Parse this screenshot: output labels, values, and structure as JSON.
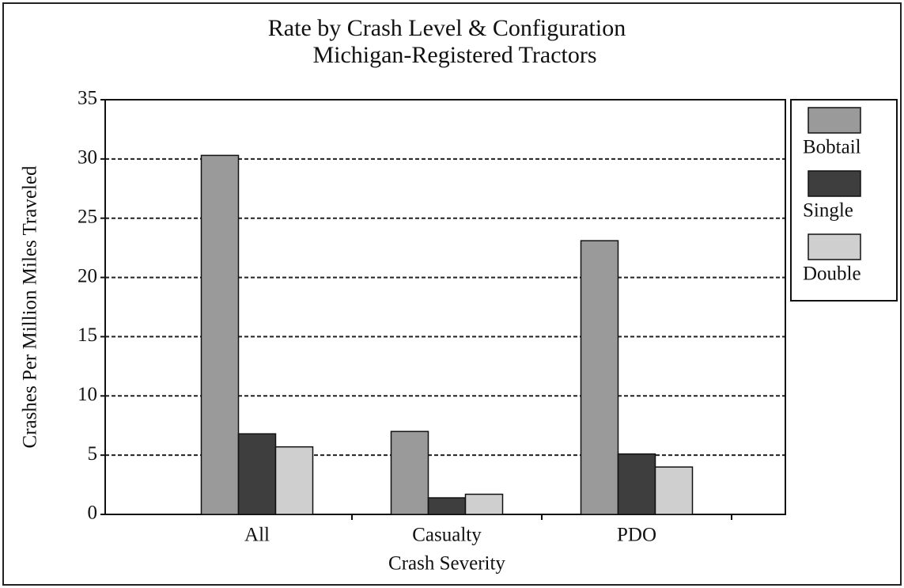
{
  "chart_data": {
    "type": "bar",
    "title": "Rate by Crash Level & Configuration",
    "subtitle": "Michigan-Registered Tractors",
    "x_label": "Crash Severity",
    "y_label": "Crashes Per Million Miles Traveled",
    "categories": [
      "All",
      "Casualty",
      "PDO"
    ],
    "series": [
      {
        "name": "Bobtail",
        "color": "#9a9a9a",
        "values": [
          30.3,
          7.0,
          23.1
        ]
      },
      {
        "name": "Single",
        "color": "#3e3e3e",
        "values": [
          6.8,
          1.4,
          5.1
        ]
      },
      {
        "name": "Double",
        "color": "#cfcfcf",
        "values": [
          5.7,
          1.7,
          4.0
        ]
      }
    ],
    "ylim": [
      0,
      35
    ],
    "yticks": [
      0,
      5,
      10,
      15,
      20,
      25,
      30,
      35
    ],
    "grid": true,
    "legend": "right"
  }
}
